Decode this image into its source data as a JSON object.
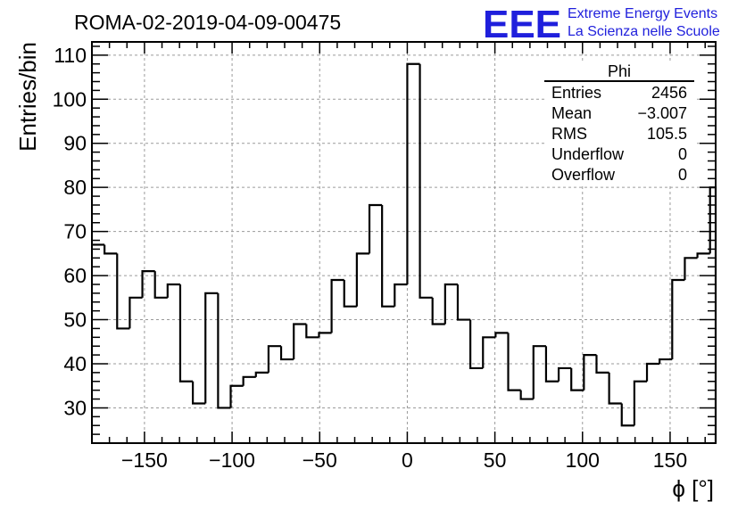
{
  "title": "ROMA-02-2019-04-09-00475",
  "logo": {
    "mark": "EEE",
    "line1": "Extreme Energy Events",
    "line2": "La Scienza nelle Scuole",
    "color": "#1f1fdc"
  },
  "stats": {
    "name": "Phi",
    "rows": [
      {
        "label": "Entries",
        "value": "2456"
      },
      {
        "label": "Mean",
        "value": "−3.007"
      },
      {
        "label": "RMS",
        "value": "105.5"
      },
      {
        "label": "Underflow",
        "value": "0"
      },
      {
        "label": "Overflow",
        "value": "0"
      }
    ]
  },
  "chart_data": {
    "type": "bar",
    "style": "step-histogram",
    "title": "ROMA-02-2019-04-09-00475",
    "xlabel": "ϕ [°]",
    "ylabel": "Entries/bin",
    "xlim": [
      -180,
      176
    ],
    "ylim": [
      22,
      113
    ],
    "bin_width": 7.2,
    "bin_edges_start": -180,
    "values": [
      67,
      65,
      48,
      55,
      61,
      55,
      58,
      36,
      31,
      56,
      30,
      35,
      37,
      38,
      44,
      41,
      49,
      46,
      47,
      59,
      53,
      65,
      76,
      53,
      58,
      108,
      55,
      49,
      58,
      50,
      39,
      46,
      47,
      34,
      32,
      44,
      36,
      39,
      34,
      42,
      38,
      31,
      26,
      36,
      40,
      41,
      59,
      64,
      65,
      80
    ],
    "xticks": [
      -150,
      -100,
      -50,
      0,
      50,
      100,
      150
    ],
    "xtick_labels": [
      "−150",
      "−100",
      "−50",
      "0",
      "50",
      "100",
      "150"
    ],
    "yticks": [
      30,
      40,
      50,
      60,
      70,
      80,
      90,
      100,
      110
    ],
    "ytick_labels": [
      "30",
      "40",
      "50",
      "60",
      "70",
      "80",
      "90",
      "100",
      "110"
    ],
    "grid": true
  }
}
